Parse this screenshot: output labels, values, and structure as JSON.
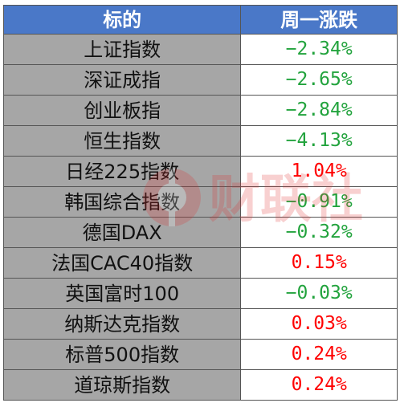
{
  "header": {
    "name": "标的",
    "change": "周一涨跌"
  },
  "rows": [
    {
      "name": "上证指数",
      "change": "−2.34%",
      "direction": "down"
    },
    {
      "name": "深证成指",
      "change": "−2.65%",
      "direction": "down"
    },
    {
      "name": "创业板指",
      "change": "−2.84%",
      "direction": "down"
    },
    {
      "name": "恒生指数",
      "change": "−4.13%",
      "direction": "down"
    },
    {
      "name": "日经225指数",
      "change": "1.04%",
      "direction": "up"
    },
    {
      "name": "韩国综合指数",
      "change": "−0.91%",
      "direction": "down"
    },
    {
      "name": "德国DAX",
      "change": "−0.32%",
      "direction": "down"
    },
    {
      "name": "法国CAC40指数",
      "change": "0.15%",
      "direction": "up"
    },
    {
      "name": "英国富时100",
      "change": "−0.03%",
      "direction": "down"
    },
    {
      "name": "纳斯达克指数",
      "change": "0.03%",
      "direction": "up"
    },
    {
      "name": "标普500指数",
      "change": "0.24%",
      "direction": "up"
    },
    {
      "name": "道琼斯指数",
      "change": "0.24%",
      "direction": "up"
    }
  ],
  "colors": {
    "header_bg": "#4a78c8",
    "name_bg": "#a6a6a6",
    "up": "#ff0000",
    "down": "#22a33d"
  },
  "watermark": {
    "text": "财联社",
    "icon": "cailianshe-logo-icon"
  }
}
